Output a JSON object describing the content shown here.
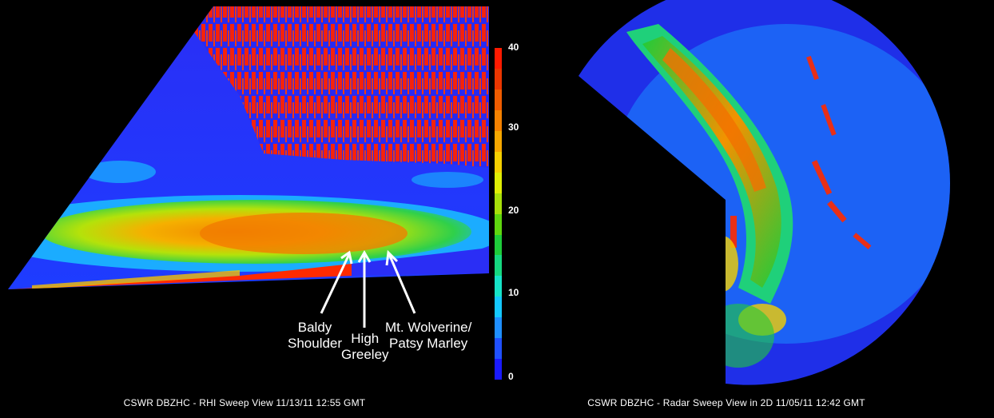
{
  "left": {
    "caption": "CSWR DBZHC - RHI Sweep View 11/13/11 12:55 GMT",
    "annotations": [
      {
        "line1": "Baldy",
        "line2": "Shoulder"
      },
      {
        "line1": "High",
        "line2": "Greeley"
      },
      {
        "line1": "Mt. Wolverine/",
        "line2": "Patsy Marley"
      }
    ]
  },
  "colorbar": {
    "ticks": [
      "40",
      "30",
      "20",
      "10",
      "0"
    ],
    "colors": [
      "#1a1aff",
      "#2050ff",
      "#1f8fff",
      "#14c8ff",
      "#16e3c8",
      "#16d880",
      "#1ecc3a",
      "#5fd60f",
      "#a8e00a",
      "#e0ee05",
      "#f5d000",
      "#f7a800",
      "#f58200",
      "#f05c00",
      "#eb3600",
      "#ff1a00"
    ]
  },
  "right": {
    "caption": "CSWR DBZHC - Radar Sweep View in 2D 11/05/11 12:42 GMT"
  }
}
